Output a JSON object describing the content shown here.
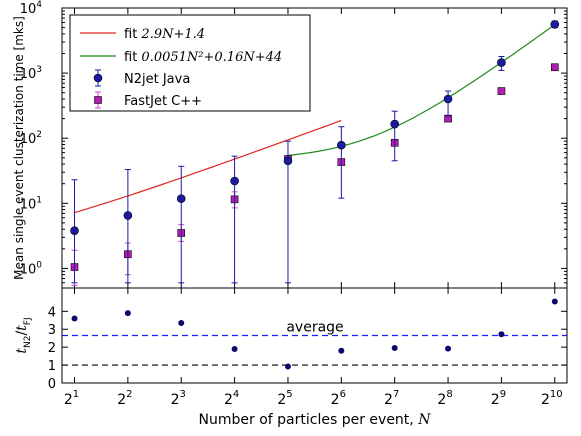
{
  "chart_data": [
    {
      "type": "scatter",
      "panel": "top",
      "ylabel": "Mean single event clusterization time [mks]",
      "yscale": "log",
      "ylim": [
        0.5,
        10000
      ],
      "xscale": "log2",
      "xlim": [
        1.7,
        1200
      ],
      "x": [
        2,
        4,
        8,
        16,
        32,
        64,
        128,
        256,
        512,
        1024
      ],
      "yticks": [
        {
          "base": "10",
          "exp": "0",
          "v": 1
        },
        {
          "base": "10",
          "exp": "1",
          "v": 10
        },
        {
          "base": "10",
          "exp": "2",
          "v": 100
        },
        {
          "base": "10",
          "exp": "3",
          "v": 1000
        },
        {
          "base": "10",
          "exp": "4",
          "v": 10000
        }
      ],
      "legend_position": "top-left",
      "series": [
        {
          "name": "N2jet Java",
          "marker": "circle",
          "color": "#1a1aa6",
          "errcolor": "#1a1aa6",
          "values": [
            3.8,
            6.5,
            11.8,
            22,
            45,
            78,
            165,
            400,
            1450,
            5600
          ],
          "lower": [
            0.6,
            0.6,
            0.6,
            0.6,
            0.6,
            12,
            45,
            220,
            1100,
            5000
          ],
          "upper": [
            23,
            33,
            37,
            53,
            90,
            150,
            260,
            530,
            1800,
            6300
          ]
        },
        {
          "name": "FastJet C++",
          "marker": "square",
          "color": "#b41cb4",
          "errcolor": "#cc44cc",
          "values": [
            1.05,
            1.65,
            3.5,
            11.5,
            48,
            43,
            85,
            200,
            530,
            1230
          ],
          "lower": [
            0.55,
            0.8,
            2.6,
            8.5,
            44,
            40,
            82,
            195,
            520,
            1200
          ],
          "upper": [
            1.9,
            2.45,
            4.7,
            15,
            52,
            47,
            90,
            206,
            545,
            1260
          ]
        }
      ],
      "fits": [
        {
          "name": "fit ",
          "formula": "2.9N+1.4",
          "color": "#e0281e",
          "x_range": [
            2,
            64
          ]
        },
        {
          "name": "fit ",
          "formula": "0.0051N²+0.16N+44",
          "color": "#1a8c1a",
          "x_range": [
            32,
            1024
          ]
        }
      ]
    },
    {
      "type": "scatter",
      "panel": "bottom",
      "ylabel_main": "t",
      "ylabel_sub1": "N2",
      "ylabel_sub2": "FJ",
      "ylim": [
        0,
        5.3
      ],
      "yticks": [
        "0",
        "1",
        "2",
        "3",
        "4"
      ],
      "xlabel": "Number of particles per event, ",
      "xlabel_var": "N",
      "xticks": [
        {
          "base": "2",
          "exp": "1"
        },
        {
          "base": "2",
          "exp": "2"
        },
        {
          "base": "2",
          "exp": "3"
        },
        {
          "base": "2",
          "exp": "4"
        },
        {
          "base": "2",
          "exp": "5"
        },
        {
          "base": "2",
          "exp": "6"
        },
        {
          "base": "2",
          "exp": "7"
        },
        {
          "base": "2",
          "exp": "8"
        },
        {
          "base": "2",
          "exp": "9"
        },
        {
          "base": "2",
          "exp": "10"
        }
      ],
      "x": [
        2,
        4,
        8,
        16,
        32,
        64,
        128,
        256,
        512,
        1024
      ],
      "ratio": [
        3.6,
        3.9,
        3.35,
        1.9,
        0.92,
        1.8,
        1.95,
        1.92,
        2.72,
        4.55
      ],
      "average": 2.65,
      "average_label": "average",
      "average_color": "#1a1aff",
      "unity": 1,
      "point_color": "#0a0a6e"
    }
  ]
}
